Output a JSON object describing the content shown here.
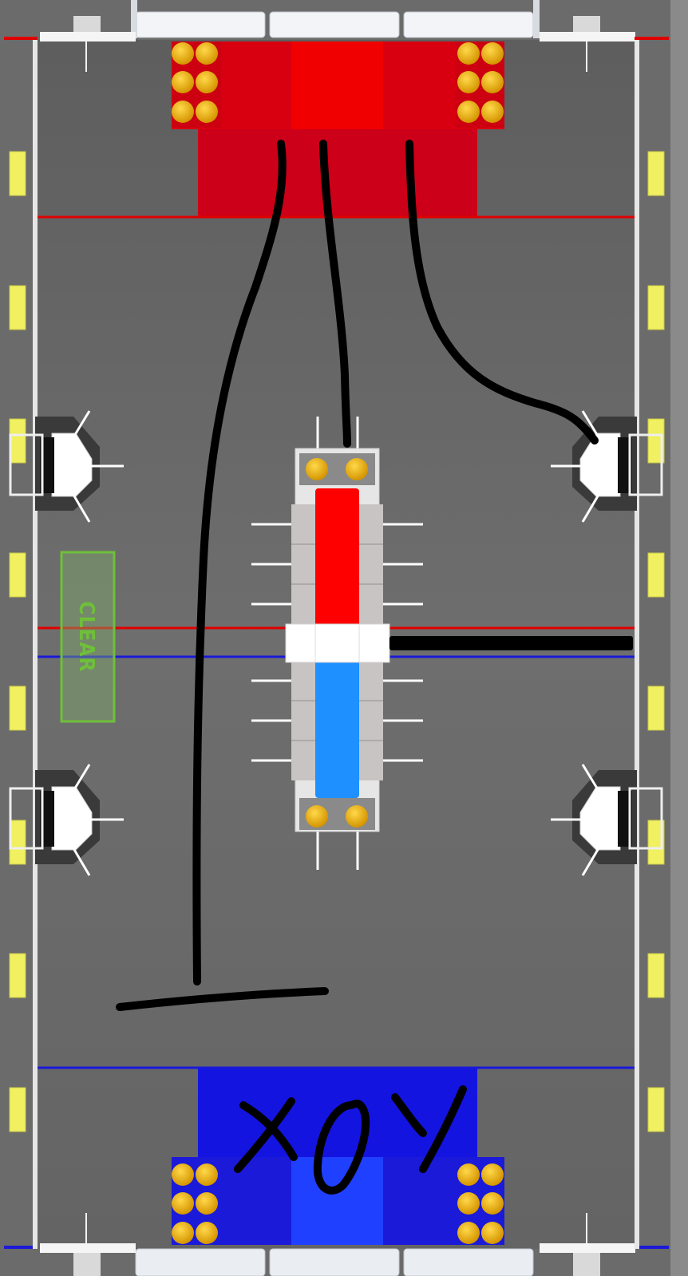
{
  "field": {
    "clear_zone_label": "CLEAR",
    "handwritten_letters": [
      "X",
      "O",
      "Y"
    ],
    "colors": {
      "carpet": "#6b6b6b",
      "red_alliance": "#e00000",
      "red_dark": "#c8001a",
      "blue_alliance": "#1a1ad8",
      "blue_bright": "#1e90ff",
      "clear_zone": "#6fbf3a",
      "ball": "#f0b000",
      "bumper_yellow": "#f0f060",
      "wall": "#f0f0f0",
      "marker": "#000000"
    },
    "icons": [
      "ball-icon",
      "robot-station-icon",
      "bumper-pad-icon"
    ]
  }
}
